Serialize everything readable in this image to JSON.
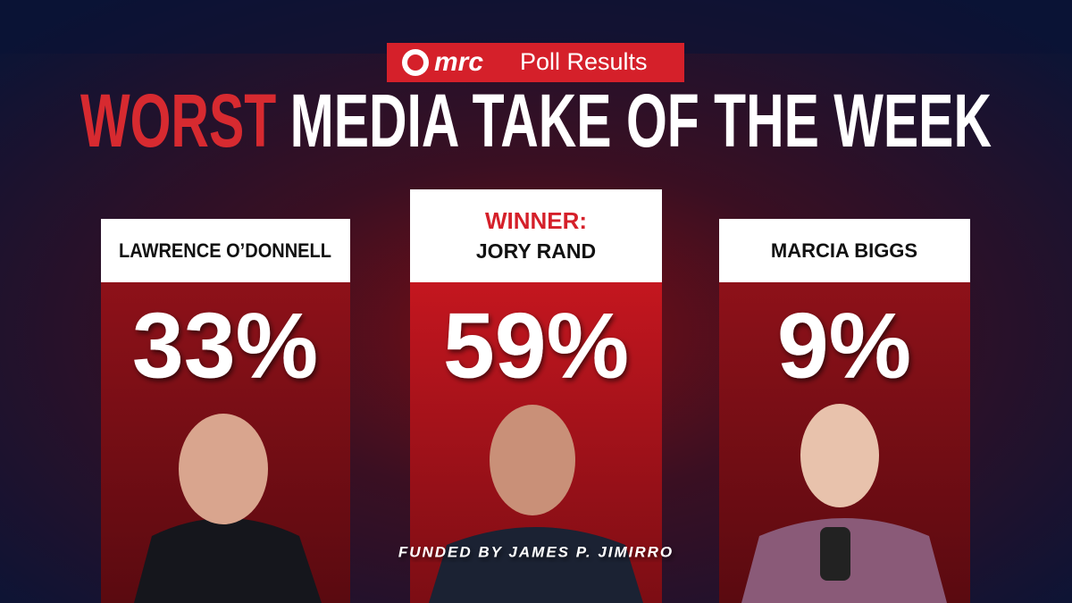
{
  "badge": {
    "logo": "mrc",
    "text": "Poll Results"
  },
  "title": {
    "highlight": "WORST",
    "rest": "MEDIA TAKE OF THE WEEK"
  },
  "cards": [
    {
      "name": "LAWRENCE O’DONNELL",
      "percent": "33%"
    },
    {
      "label": "WINNER:",
      "name": "JORY RAND",
      "percent": "59%"
    },
    {
      "name": "MARCIA BIGGS",
      "percent": "9%"
    }
  ],
  "footer": "FUNDED BY JAMES P. JIMIRRO"
}
